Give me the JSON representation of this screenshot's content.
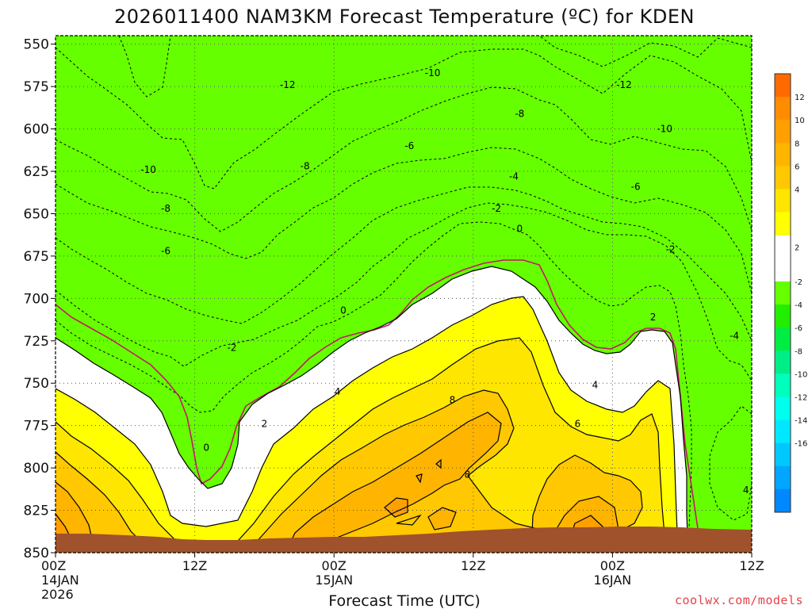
{
  "chart_data": {
    "type": "heatmap",
    "title": "2026011400 NAM3KM Forecast Temperature (ºC) for KDEN",
    "xlabel": "Forecast Time (UTC)",
    "ylabel": "",
    "y_axis": {
      "ticks": [
        550,
        575,
        600,
        625,
        650,
        675,
        700,
        725,
        750,
        775,
        800,
        825,
        850
      ],
      "ylim": [
        850,
        545
      ],
      "inverted": true
    },
    "x_axis": {
      "hours": [
        0,
        12,
        24,
        36,
        48,
        60
      ],
      "xlim": [
        0,
        60
      ],
      "tick_labels": [
        {
          "hour": 0,
          "lines": [
            "00Z",
            "14JAN",
            "2026"
          ]
        },
        {
          "hour": 12,
          "lines": [
            "12Z"
          ]
        },
        {
          "hour": 24,
          "lines": [
            "00Z",
            "15JAN"
          ]
        },
        {
          "hour": 36,
          "lines": [
            "12Z"
          ]
        },
        {
          "hour": 48,
          "lines": [
            "00Z",
            "16JAN"
          ]
        },
        {
          "hour": 60,
          "lines": [
            "12Z"
          ]
        }
      ]
    },
    "grid": true,
    "colorbar": {
      "placement": "right",
      "ticks": [
        12,
        10,
        8,
        6,
        4,
        2,
        -2,
        -4,
        -6,
        -8,
        -10,
        -12,
        -14,
        -16
      ],
      "bins": [
        {
          "color": "#ff6a00"
        },
        {
          "color": "#ff8c00"
        },
        {
          "color": "#ffa000"
        },
        {
          "color": "#ffb400"
        },
        {
          "color": "#ffc800"
        },
        {
          "color": "#ffe600"
        },
        {
          "color": "#ffff00"
        },
        {
          "color": "#ffffff"
        },
        {
          "color": "#ffffff"
        },
        {
          "color": "#66ff00"
        },
        {
          "color": "#22ee00"
        },
        {
          "color": "#00ee44"
        },
        {
          "color": "#00ee88"
        },
        {
          "color": "#00ffbb"
        },
        {
          "color": "#00ffee"
        },
        {
          "color": "#00e8ff"
        },
        {
          "color": "#00c8ff"
        },
        {
          "color": "#00a6ff"
        },
        {
          "color": "#0088ff"
        }
      ]
    },
    "contour_labels": [
      {
        "text": "-10",
        "hour": 32.5,
        "p": 567
      },
      {
        "text": "-12",
        "hour": 20.0,
        "p": 574
      },
      {
        "text": "-12",
        "hour": 49.0,
        "p": 574
      },
      {
        "text": "-8",
        "hour": 40.0,
        "p": 591
      },
      {
        "text": "-10",
        "hour": 52.5,
        "p": 600
      },
      {
        "text": "-6",
        "hour": 30.5,
        "p": 610
      },
      {
        "text": "-10",
        "hour": 8.0,
        "p": 624
      },
      {
        "text": "-8",
        "hour": 21.5,
        "p": 622
      },
      {
        "text": "-4",
        "hour": 39.5,
        "p": 628
      },
      {
        "text": "-6",
        "hour": 50.0,
        "p": 634
      },
      {
        "text": "-8",
        "hour": 9.5,
        "p": 647
      },
      {
        "text": "-2",
        "hour": 38.0,
        "p": 647
      },
      {
        "text": "0",
        "hour": 40.0,
        "p": 659
      },
      {
        "text": "-6",
        "hour": 9.5,
        "p": 672
      },
      {
        "text": "-2",
        "hour": 53.0,
        "p": 671
      },
      {
        "text": "0",
        "hour": 24.8,
        "p": 707
      },
      {
        "text": "2",
        "hour": 51.5,
        "p": 711
      },
      {
        "text": "-2",
        "hour": 15.2,
        "p": 729
      },
      {
        "text": "-4",
        "hour": 58.5,
        "p": 722
      },
      {
        "text": "4",
        "hour": 24.3,
        "p": 755
      },
      {
        "text": "4",
        "hour": 46.5,
        "p": 751
      },
      {
        "text": "8",
        "hour": 34.2,
        "p": 760
      },
      {
        "text": "2",
        "hour": 18.0,
        "p": 774
      },
      {
        "text": "6",
        "hour": 45.0,
        "p": 774
      },
      {
        "text": "0",
        "hour": 13.0,
        "p": 788
      },
      {
        "text": "8",
        "hour": 35.5,
        "p": 804
      },
      {
        "text": "4",
        "hour": 59.5,
        "p": 813
      }
    ]
  },
  "credit": "coolwx.com/models"
}
